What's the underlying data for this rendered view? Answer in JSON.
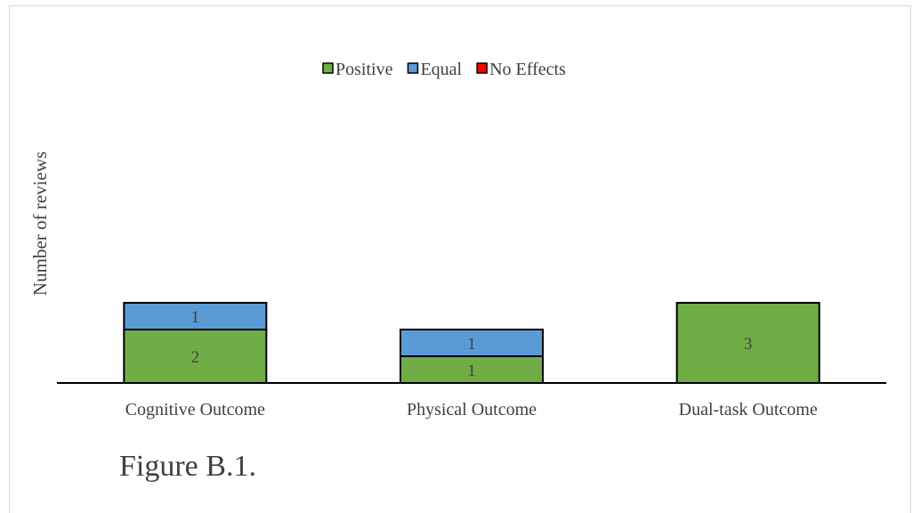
{
  "caption": "Figure B.1.",
  "colors": {
    "positive": "#70ad47",
    "equal": "#5b9bd5",
    "no_effects": "#ff0000",
    "outline": "#000000",
    "text": "#404040"
  },
  "chart_data": {
    "type": "bar",
    "stacked": true,
    "title": "",
    "xlabel": "",
    "ylabel": "Number of reviews",
    "categories": [
      "Cognitive Outcome",
      "Physical Outcome",
      "Dual-task Outcome"
    ],
    "series": [
      {
        "name": "Positive",
        "values": [
          2,
          1,
          3
        ]
      },
      {
        "name": "Equal",
        "values": [
          1,
          1,
          0
        ]
      },
      {
        "name": "No Effects",
        "values": [
          0,
          0,
          0
        ]
      }
    ],
    "data_labels": [
      [
        "2",
        "1",
        "3"
      ],
      [
        "1",
        "1",
        ""
      ],
      [
        "",
        "",
        ""
      ]
    ],
    "ylim": [
      0,
      12
    ],
    "grid": false,
    "y_axis_visible": false,
    "legend": "top"
  }
}
